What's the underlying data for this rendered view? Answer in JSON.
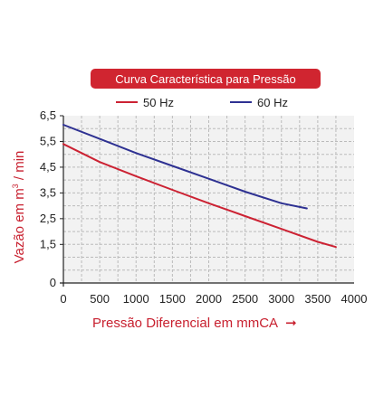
{
  "colors": {
    "title_bg": "#d02530",
    "series_50hz": "#cc2233",
    "series_60hz": "#2e3192",
    "axis_label": "#c8202f",
    "grid": "#bbbbbb",
    "plot_bg": "#f2f2f2"
  },
  "chart_data": {
    "type": "line",
    "title": "Curva Característica para Pressão",
    "xlabel": "Pressão Diferencial em mmCA",
    "xlabel_arrow": "➞",
    "ylabel_pre": "Vazão em m",
    "ylabel_sup": "3",
    "ylabel_post": " / min",
    "xlim": [
      0,
      4000
    ],
    "ylim": [
      0,
      6.5
    ],
    "xticks": [
      0,
      500,
      1000,
      1500,
      2000,
      2500,
      3000,
      3500,
      4000
    ],
    "xtick_labels": [
      "0",
      "500",
      "1000",
      "1500",
      "2000",
      "2500",
      "3000",
      "3500",
      "4000"
    ],
    "yticks": [
      0,
      1.5,
      2.5,
      3.5,
      4.5,
      5.5,
      6.5
    ],
    "ytick_labels": [
      "0",
      "1,5",
      "2,5",
      "3,5",
      "4,5",
      "5,5",
      "6,5"
    ],
    "grid": true,
    "legend_position": "top",
    "series": [
      {
        "name": "50 Hz",
        "color": "#cc2233",
        "x": [
          0,
          500,
          1000,
          1500,
          2000,
          2500,
          3000,
          3500,
          3750
        ],
        "y": [
          5.4,
          4.7,
          4.15,
          3.62,
          3.1,
          2.6,
          2.1,
          1.6,
          1.4
        ]
      },
      {
        "name": "60 Hz",
        "color": "#2e3192",
        "x": [
          0,
          500,
          1000,
          1500,
          2000,
          2500,
          3000,
          3350
        ],
        "y": [
          6.15,
          5.6,
          5.05,
          4.55,
          4.05,
          3.55,
          3.1,
          2.9
        ]
      }
    ]
  }
}
